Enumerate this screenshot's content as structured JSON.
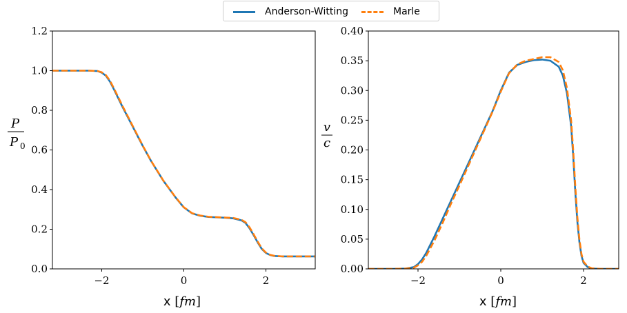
{
  "colors": {
    "anderson": "#1f77b4",
    "marle": "#ff7f0e"
  },
  "legend": {
    "items": [
      "Anderson-Witting",
      "Marle"
    ],
    "placement": "top-center"
  },
  "chart_data": [
    {
      "type": "line",
      "xlabel": "x [fm]",
      "ylabel": "P / P0",
      "xlim": [
        -3.2,
        3.2
      ],
      "ylim": [
        0.0,
        1.2
      ],
      "xticks": [
        -2,
        0,
        2
      ],
      "yticks": [
        0.0,
        0.2,
        0.4,
        0.6,
        0.8,
        1.0,
        1.2
      ],
      "ytick_labels": [
        "0.0",
        "0.2",
        "0.4",
        "0.6",
        "0.8",
        "1.0",
        "1.2"
      ],
      "series": [
        {
          "name": "Anderson-Witting",
          "x": [
            -3.2,
            -2.6,
            -2.3,
            -2.1,
            -2.0,
            -1.9,
            -1.8,
            -1.7,
            -1.5,
            -1.2,
            -1.0,
            -0.8,
            -0.5,
            -0.2,
            0.0,
            0.2,
            0.4,
            0.6,
            0.8,
            1.0,
            1.2,
            1.4,
            1.5,
            1.6,
            1.7,
            1.8,
            1.9,
            2.0,
            2.1,
            2.2,
            2.4,
            2.8,
            3.2
          ],
          "y": [
            1.0,
            1.0,
            1.0,
            0.998,
            0.99,
            0.975,
            0.945,
            0.905,
            0.82,
            0.7,
            0.62,
            0.545,
            0.445,
            0.36,
            0.31,
            0.28,
            0.268,
            0.262,
            0.26,
            0.258,
            0.255,
            0.245,
            0.232,
            0.205,
            0.17,
            0.133,
            0.1,
            0.08,
            0.07,
            0.065,
            0.063,
            0.063,
            0.063
          ]
        },
        {
          "name": "Marle",
          "x": [
            -3.2,
            -2.6,
            -2.3,
            -2.1,
            -2.0,
            -1.9,
            -1.8,
            -1.7,
            -1.5,
            -1.2,
            -1.0,
            -0.8,
            -0.5,
            -0.2,
            0.0,
            0.2,
            0.4,
            0.6,
            0.8,
            1.0,
            1.2,
            1.4,
            1.5,
            1.6,
            1.7,
            1.8,
            1.9,
            2.0,
            2.1,
            2.2,
            2.4,
            2.8,
            3.2
          ],
          "y": [
            1.0,
            1.0,
            1.0,
            0.998,
            0.992,
            0.978,
            0.95,
            0.91,
            0.825,
            0.703,
            0.622,
            0.546,
            0.446,
            0.361,
            0.311,
            0.281,
            0.269,
            0.263,
            0.261,
            0.259,
            0.257,
            0.248,
            0.236,
            0.21,
            0.175,
            0.137,
            0.103,
            0.082,
            0.071,
            0.066,
            0.063,
            0.063,
            0.063
          ]
        }
      ]
    },
    {
      "type": "line",
      "xlabel": "x [fm]",
      "ylabel": "v / c",
      "xlim": [
        -3.2,
        2.85
      ],
      "ylim": [
        0.0,
        0.4
      ],
      "xticks": [
        -2,
        0,
        2
      ],
      "yticks": [
        0.0,
        0.05,
        0.1,
        0.15,
        0.2,
        0.25,
        0.3,
        0.35,
        0.4
      ],
      "ytick_labels": [
        "0.00",
        "0.05",
        "0.10",
        "0.15",
        "0.20",
        "0.25",
        "0.30",
        "0.35",
        "0.40"
      ],
      "series": [
        {
          "name": "Anderson-Witting",
          "x": [
            -3.2,
            -2.6,
            -2.3,
            -2.1,
            -2.0,
            -1.9,
            -1.8,
            -1.6,
            -1.4,
            -1.2,
            -1.0,
            -0.8,
            -0.6,
            -0.4,
            -0.2,
            0.0,
            0.2,
            0.4,
            0.6,
            0.8,
            1.0,
            1.2,
            1.4,
            1.5,
            1.6,
            1.7,
            1.75,
            1.8,
            1.85,
            1.9,
            1.95,
            2.0,
            2.1,
            2.2,
            2.4,
            2.85
          ],
          "y": [
            0.0,
            0.0,
            0.0005,
            0.003,
            0.008,
            0.016,
            0.027,
            0.055,
            0.085,
            0.115,
            0.145,
            0.175,
            0.205,
            0.235,
            0.265,
            0.3,
            0.33,
            0.343,
            0.348,
            0.351,
            0.352,
            0.35,
            0.34,
            0.325,
            0.295,
            0.24,
            0.19,
            0.13,
            0.08,
            0.045,
            0.022,
            0.01,
            0.003,
            0.0005,
            0.0,
            0.0
          ]
        },
        {
          "name": "Marle",
          "x": [
            -3.2,
            -2.6,
            -2.3,
            -2.1,
            -2.0,
            -1.9,
            -1.8,
            -1.6,
            -1.4,
            -1.2,
            -1.0,
            -0.8,
            -0.6,
            -0.4,
            -0.2,
            0.0,
            0.2,
            0.4,
            0.6,
            0.8,
            1.0,
            1.2,
            1.4,
            1.5,
            1.6,
            1.7,
            1.75,
            1.8,
            1.85,
            1.9,
            1.95,
            2.0,
            2.1,
            2.2,
            2.4,
            2.85
          ],
          "y": [
            0.0,
            0.0,
            0.0005,
            0.002,
            0.006,
            0.012,
            0.022,
            0.048,
            0.078,
            0.11,
            0.14,
            0.171,
            0.202,
            0.233,
            0.264,
            0.298,
            0.329,
            0.344,
            0.35,
            0.353,
            0.356,
            0.356,
            0.348,
            0.334,
            0.304,
            0.25,
            0.2,
            0.14,
            0.088,
            0.05,
            0.025,
            0.012,
            0.004,
            0.001,
            0.0,
            0.0
          ]
        }
      ]
    }
  ]
}
